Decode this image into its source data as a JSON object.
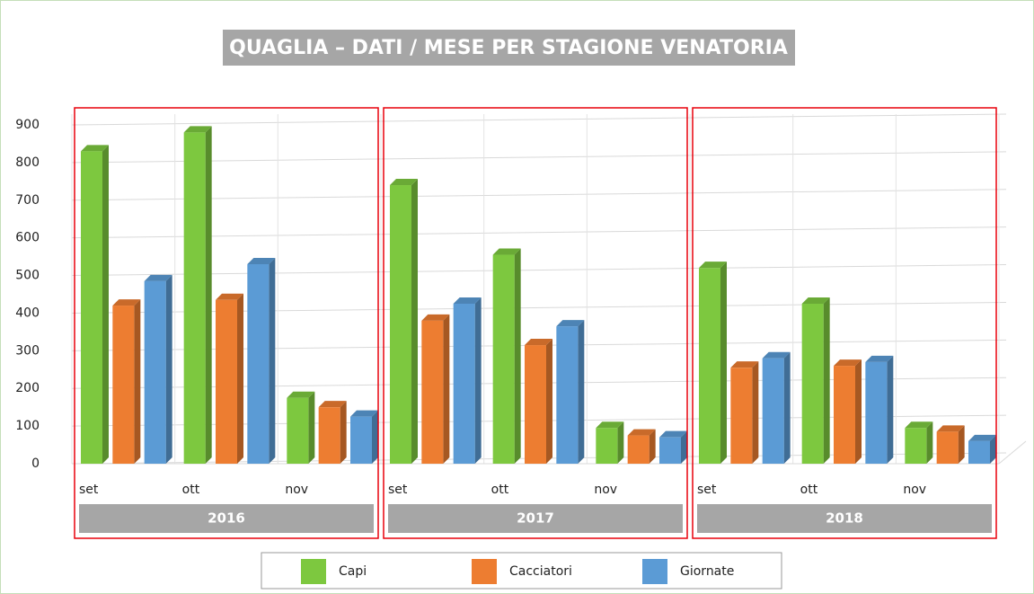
{
  "chart_data": {
    "type": "bar",
    "title": "QUAGLIA – DATI / MESE PER STAGIONE VENATORIA",
    "categories": [
      "set",
      "ott",
      "nov",
      "set",
      "ott",
      "nov",
      "set",
      "ott",
      "nov"
    ],
    "groups": [
      "2016",
      "2017",
      "2018"
    ],
    "series": [
      {
        "name": "Capi",
        "color": "#7dc83f",
        "values": [
          830,
          880,
          175,
          740,
          555,
          95,
          520,
          425,
          95
        ]
      },
      {
        "name": "Cacciatori",
        "color": "#ed7d31",
        "values": [
          420,
          435,
          150,
          380,
          315,
          75,
          255,
          260,
          85
        ]
      },
      {
        "name": "Giornate",
        "color": "#5b9bd5",
        "values": [
          485,
          530,
          125,
          425,
          365,
          70,
          280,
          270,
          60
        ]
      }
    ],
    "ylim": [
      0,
      900
    ],
    "yticks": [
      0,
      100,
      200,
      300,
      400,
      500,
      600,
      700,
      800,
      900
    ],
    "grid": true
  }
}
